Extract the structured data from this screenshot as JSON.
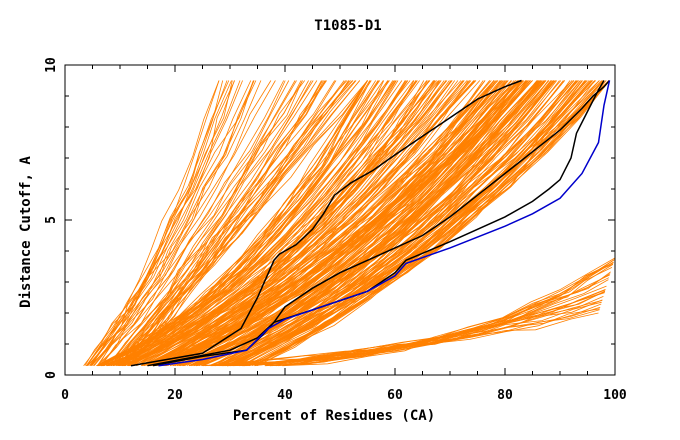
{
  "chart_data": {
    "type": "line",
    "title": "T1085-D1",
    "xlabel": "Percent of Residues (CA)",
    "ylabel": "Distance Cutoff, A",
    "xlim": [
      0,
      100
    ],
    "ylim": [
      0,
      10
    ],
    "x_ticks": [
      0,
      20,
      40,
      60,
      80,
      100
    ],
    "y_ticks": [
      0,
      5,
      10
    ],
    "y_minor_step": 1,
    "x_minor_step": 5,
    "grid": false,
    "legend": "none",
    "colors": {
      "background_curves": "#ff8000",
      "highlight": "#000000",
      "reference": "#0000cc"
    },
    "background_bundles": [
      {
        "count": 55,
        "start": [
          [
            3,
            0.3
          ],
          [
            12,
            0.3
          ]
        ],
        "mid": [
          [
            16,
            3.0
          ],
          [
            30,
            4.2
          ]
        ],
        "end": [
          [
            28,
            9.5
          ],
          [
            55,
            9.5
          ]
        ]
      },
      {
        "count": 110,
        "start": [
          [
            5,
            0.3
          ],
          [
            18,
            0.3
          ]
        ],
        "mid": [
          [
            30,
            2.0
          ],
          [
            55,
            3.8
          ]
        ],
        "end": [
          [
            55,
            9.5
          ],
          [
            85,
            9.5
          ]
        ]
      },
      {
        "count": 130,
        "start": [
          [
            15,
            0.3
          ],
          [
            35,
            0.3
          ]
        ],
        "mid": [
          [
            45,
            2.0
          ],
          [
            70,
            3.5
          ]
        ],
        "end": [
          [
            78,
            9.5
          ],
          [
            99,
            9.5
          ]
        ]
      },
      {
        "count": 30,
        "start": [
          [
            25,
            0.3
          ],
          [
            40,
            0.3
          ]
        ],
        "mid": [
          [
            70,
            0.8
          ],
          [
            80,
            1.0
          ]
        ],
        "end": [
          [
            97,
            2.0
          ],
          [
            100,
            3.8
          ]
        ]
      }
    ],
    "series": [
      {
        "role": "highlight",
        "x": [
          12,
          25,
          32,
          35,
          37,
          38,
          39,
          42,
          45,
          47,
          49,
          52,
          56,
          60,
          65,
          70,
          75,
          80,
          83
        ],
        "y": [
          0.3,
          0.7,
          1.5,
          2.5,
          3.3,
          3.7,
          3.9,
          4.2,
          4.7,
          5.2,
          5.8,
          6.2,
          6.6,
          7.1,
          7.7,
          8.3,
          8.9,
          9.3,
          9.5
        ]
      },
      {
        "role": "highlight",
        "x": [
          15,
          30,
          35,
          38,
          40,
          45,
          50,
          55,
          60,
          65,
          70,
          75,
          80,
          85,
          90,
          94,
          96,
          98,
          99
        ],
        "y": [
          0.3,
          0.8,
          1.2,
          1.7,
          2.2,
          2.8,
          3.3,
          3.7,
          4.1,
          4.5,
          5.1,
          5.8,
          6.5,
          7.2,
          7.9,
          8.6,
          9.0,
          9.3,
          9.5
        ]
      },
      {
        "role": "highlight",
        "x": [
          16,
          25,
          33,
          36,
          38,
          45,
          55,
          60,
          62,
          70,
          80,
          85,
          88,
          90,
          92,
          93,
          95,
          97,
          98
        ],
        "y": [
          0.3,
          0.6,
          0.8,
          1.3,
          1.7,
          2.1,
          2.7,
          3.3,
          3.7,
          4.3,
          5.1,
          5.6,
          6.0,
          6.3,
          7.0,
          7.8,
          8.5,
          9.2,
          9.5
        ]
      },
      {
        "role": "reference",
        "x": [
          17,
          25,
          33,
          37,
          40,
          45,
          50,
          55,
          60,
          62,
          70,
          80,
          85,
          90,
          94,
          97,
          98,
          99
        ],
        "y": [
          0.3,
          0.5,
          0.8,
          1.5,
          1.8,
          2.1,
          2.4,
          2.7,
          3.2,
          3.6,
          4.1,
          4.8,
          5.2,
          5.7,
          6.5,
          7.5,
          8.7,
          9.5
        ]
      }
    ]
  }
}
